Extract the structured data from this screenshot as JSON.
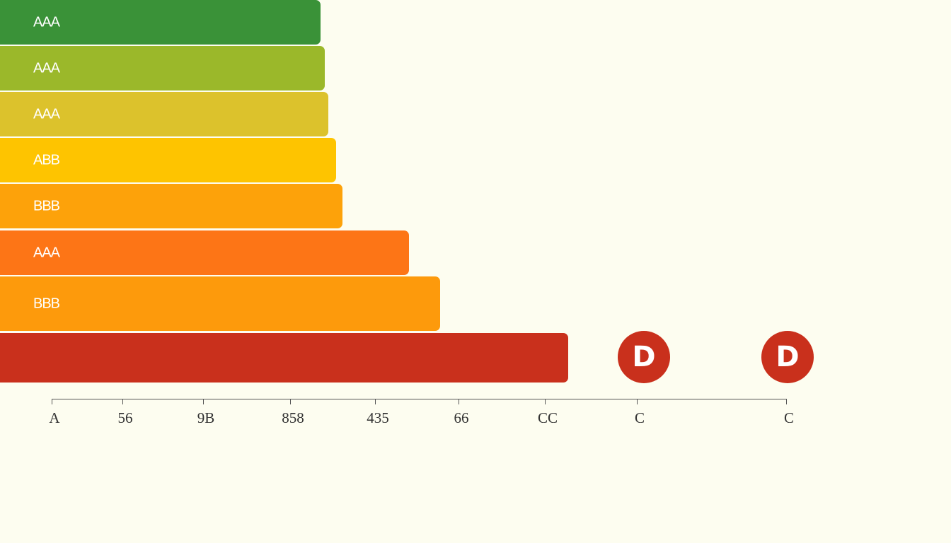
{
  "bars": {
    "labels": [
      "AAA",
      "AAA",
      "AAA",
      "ABB",
      "BBB",
      "AAA",
      "BBB"
    ]
  },
  "markers": [
    "D",
    "D"
  ],
  "axis": {
    "tick_labels": [
      "A",
      "56",
      "9B",
      "858",
      "435",
      "66",
      "CC",
      "C",
      "C"
    ]
  }
}
